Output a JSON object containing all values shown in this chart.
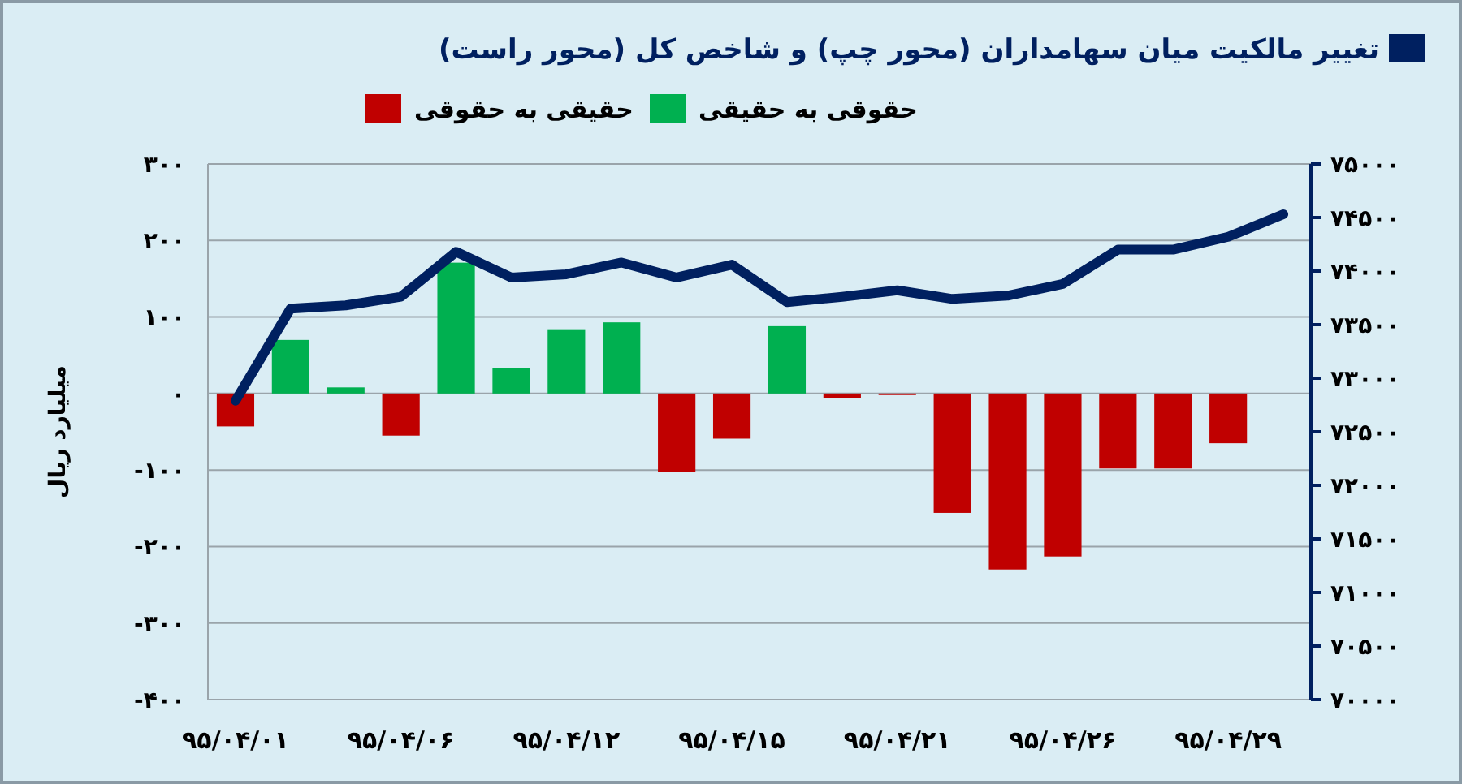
{
  "chart_data": {
    "type": "bar",
    "categories": [
      "۹۵/۰۴/۰۱",
      null,
      null,
      "۹۵/۰۴/۰۶",
      null,
      null,
      "۹۵/۰۴/۱۲",
      null,
      null,
      "۹۵/۰۴/۱۵",
      null,
      null,
      "۹۵/۰۴/۲۱",
      null,
      null,
      "۹۵/۰۴/۲۶",
      null,
      null,
      "۹۵/۰۴/۲۹",
      null
    ],
    "ylabel": "میلیارد ریال",
    "series": [
      {
        "name": "حقوقی به حقیقی",
        "color": "#00b050",
        "values": [
          null,
          70,
          8,
          null,
          171,
          33,
          84,
          93,
          null,
          null,
          88,
          null,
          null,
          null,
          null,
          null,
          null,
          null,
          null,
          null
        ]
      },
      {
        "name": "حقیقی به حقوقی",
        "color": "#c00000",
        "values": [
          -43,
          null,
          null,
          -55,
          null,
          null,
          null,
          null,
          -103,
          -59,
          null,
          -6,
          -2,
          -156,
          -230,
          -213,
          -98,
          -98,
          -65,
          null
        ]
      },
      {
        "name": "تغییر مالکیت میان سهامداران (محور چپ) و شاخص کل (محور راست)",
        "type": "line",
        "axis": "y2",
        "color": "#002060",
        "values": [
          72790,
          73650,
          73680,
          73760,
          74180,
          73940,
          73970,
          74080,
          73940,
          74060,
          73710,
          73760,
          73820,
          73740,
          73770,
          73880,
          74200,
          74200,
          74320,
          74530
        ]
      }
    ],
    "ylim": [
      -400,
      300
    ],
    "yticks": [
      {
        "value": -400,
        "label": "-۴۰۰"
      },
      {
        "value": -300,
        "label": "-۳۰۰"
      },
      {
        "value": -200,
        "label": "-۲۰۰"
      },
      {
        "value": -100,
        "label": "-۱۰۰"
      },
      {
        "value": 0,
        "label": "۰"
      },
      {
        "value": 100,
        "label": "۱۰۰"
      },
      {
        "value": 200,
        "label": "۲۰۰"
      },
      {
        "value": 300,
        "label": "۳۰۰"
      }
    ],
    "y2lim": [
      70000,
      75000
    ],
    "y2ticks": [
      {
        "value": 70000,
        "label": "۷۰۰۰۰"
      },
      {
        "value": 70500,
        "label": "۷۰۵۰۰"
      },
      {
        "value": 71000,
        "label": "۷۱۰۰۰"
      },
      {
        "value": 71500,
        "label": "۷۱۵۰۰"
      },
      {
        "value": 72000,
        "label": "۷۲۰۰۰"
      },
      {
        "value": 72500,
        "label": "۷۲۵۰۰"
      },
      {
        "value": 73000,
        "label": "۷۳۰۰۰"
      },
      {
        "value": 73500,
        "label": "۷۳۵۰۰"
      },
      {
        "value": 74000,
        "label": "۷۴۰۰۰"
      },
      {
        "value": 74500,
        "label": "۷۴۵۰۰"
      },
      {
        "value": 75000,
        "label": "۷۵۰۰۰"
      }
    ],
    "grid": "y",
    "legend": "top"
  }
}
